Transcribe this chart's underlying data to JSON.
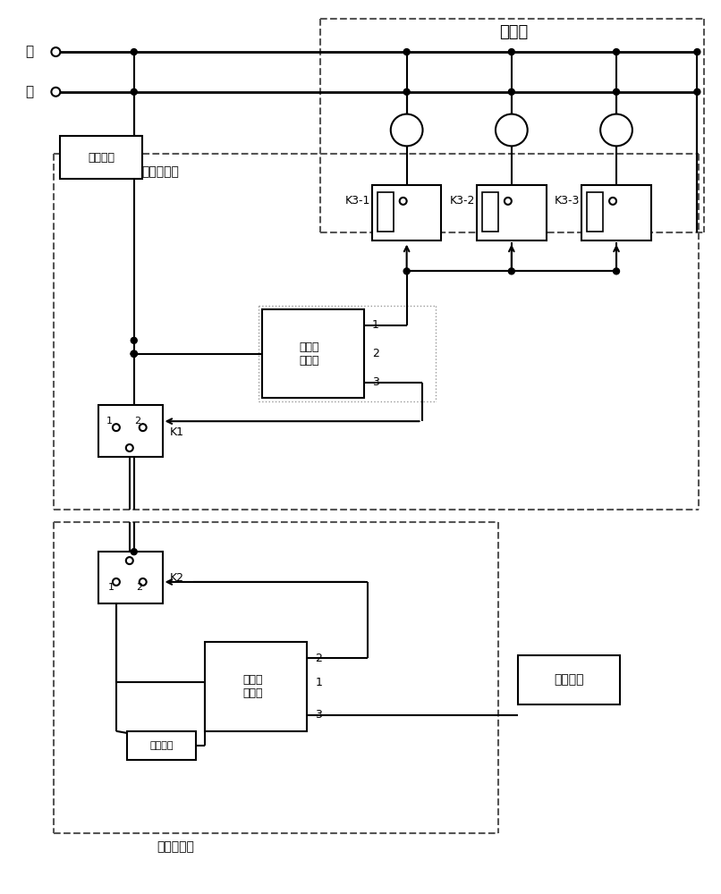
{
  "bg": "#ffffff",
  "lc": "#000000",
  "fig_w": 8.06,
  "fig_h": 10.0,
  "labels": {
    "fubei": "负载组",
    "huo": "火",
    "ling": "零",
    "shidian": "市电电源",
    "zhudong_duan": "主动控制端",
    "zhudong_circuit": "主动控\n制电路",
    "chuandong_duan": "从动控制端",
    "chuandong_circuit": "从动控\n制电路",
    "chuneng": "储能元件",
    "zhixing": "执行元件",
    "K1": "K1",
    "K2": "K2",
    "K3_1": "K3-1",
    "K3_2": "K3-2",
    "K3_3": "K3-3"
  }
}
